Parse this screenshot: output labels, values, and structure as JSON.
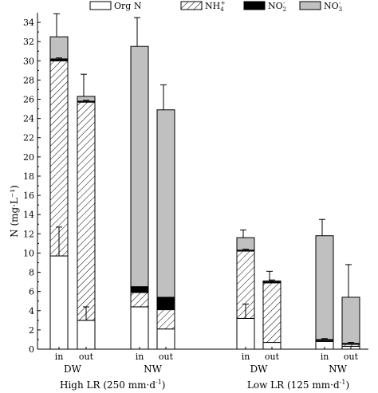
{
  "chart_data": {
    "type": "bar",
    "stacked": true,
    "title": "",
    "ylabel": "N (mg·L⁻¹)",
    "ylim": [
      0,
      35
    ],
    "yticks": [
      0,
      2,
      4,
      6,
      8,
      10,
      12,
      14,
      16,
      18,
      20,
      22,
      24,
      26,
      28,
      30,
      32,
      34
    ],
    "legend": [
      {
        "name": "Org N",
        "sub": "",
        "sup": "",
        "color": "#ffffff",
        "pattern": "none"
      },
      {
        "name": "NH",
        "sub": "4",
        "sup": "+",
        "color": "#ffffff",
        "pattern": "hatch"
      },
      {
        "name": "NO",
        "sub": "2",
        "sup": "-",
        "color": "#000000",
        "pattern": "solid"
      },
      {
        "name": "NO",
        "sub": "3",
        "sup": "-",
        "color": "#c0c0c0",
        "pattern": "solid"
      }
    ],
    "legend_position": "top",
    "categories": [
      {
        "label": "in",
        "wetland": "DW",
        "lr": "High LR"
      },
      {
        "label": "out",
        "wetland": "DW",
        "lr": "High LR"
      },
      {
        "label": "in",
        "wetland": "NW",
        "lr": "High LR"
      },
      {
        "label": "out",
        "wetland": "NW",
        "lr": "High LR"
      },
      {
        "label": "in",
        "wetland": "DW",
        "lr": "Low LR"
      },
      {
        "label": "out",
        "wetland": "DW",
        "lr": "Low LR"
      },
      {
        "label": "in",
        "wetland": "NW",
        "lr": "Low LR"
      },
      {
        "label": "out",
        "wetland": "NW",
        "lr": "Low LR"
      }
    ],
    "series": [
      {
        "name": "Org N",
        "values": [
          9.7,
          3.0,
          4.4,
          2.1,
          3.2,
          0.7,
          0.8,
          0.3
        ]
      },
      {
        "name": "NH4+",
        "values": [
          20.3,
          22.7,
          1.5,
          2.0,
          7.0,
          6.2,
          0.1,
          0.2
        ]
      },
      {
        "name": "NO2-",
        "values": [
          0.2,
          0.1,
          0.6,
          1.3,
          0.1,
          0.1,
          0.1,
          0.1
        ]
      },
      {
        "name": "NO3-",
        "values": [
          2.3,
          0.5,
          25.0,
          19.5,
          1.3,
          0.1,
          10.8,
          4.8
        ]
      }
    ],
    "error_bars_top": [
      2.4,
      2.3,
      3.0,
      2.6,
      0.8,
      1.0,
      1.7,
      3.4
    ],
    "error_bars_orgn": [
      3.0,
      1.4,
      0,
      0,
      1.5,
      0,
      0,
      0
    ],
    "error_bars_nh4": [
      0.3,
      0.2,
      0.2,
      0.4,
      0.2,
      0.3,
      0.2,
      0.2
    ],
    "wetland_labels": [
      "DW",
      "NW",
      "DW",
      "NW"
    ],
    "lr_labels": [
      {
        "text": "High LR (250 mm·d",
        "sup": "-1",
        "tail": ")"
      },
      {
        "text": "Low LR (125 mm·d",
        "sup": "-1",
        "tail": ")"
      }
    ]
  }
}
